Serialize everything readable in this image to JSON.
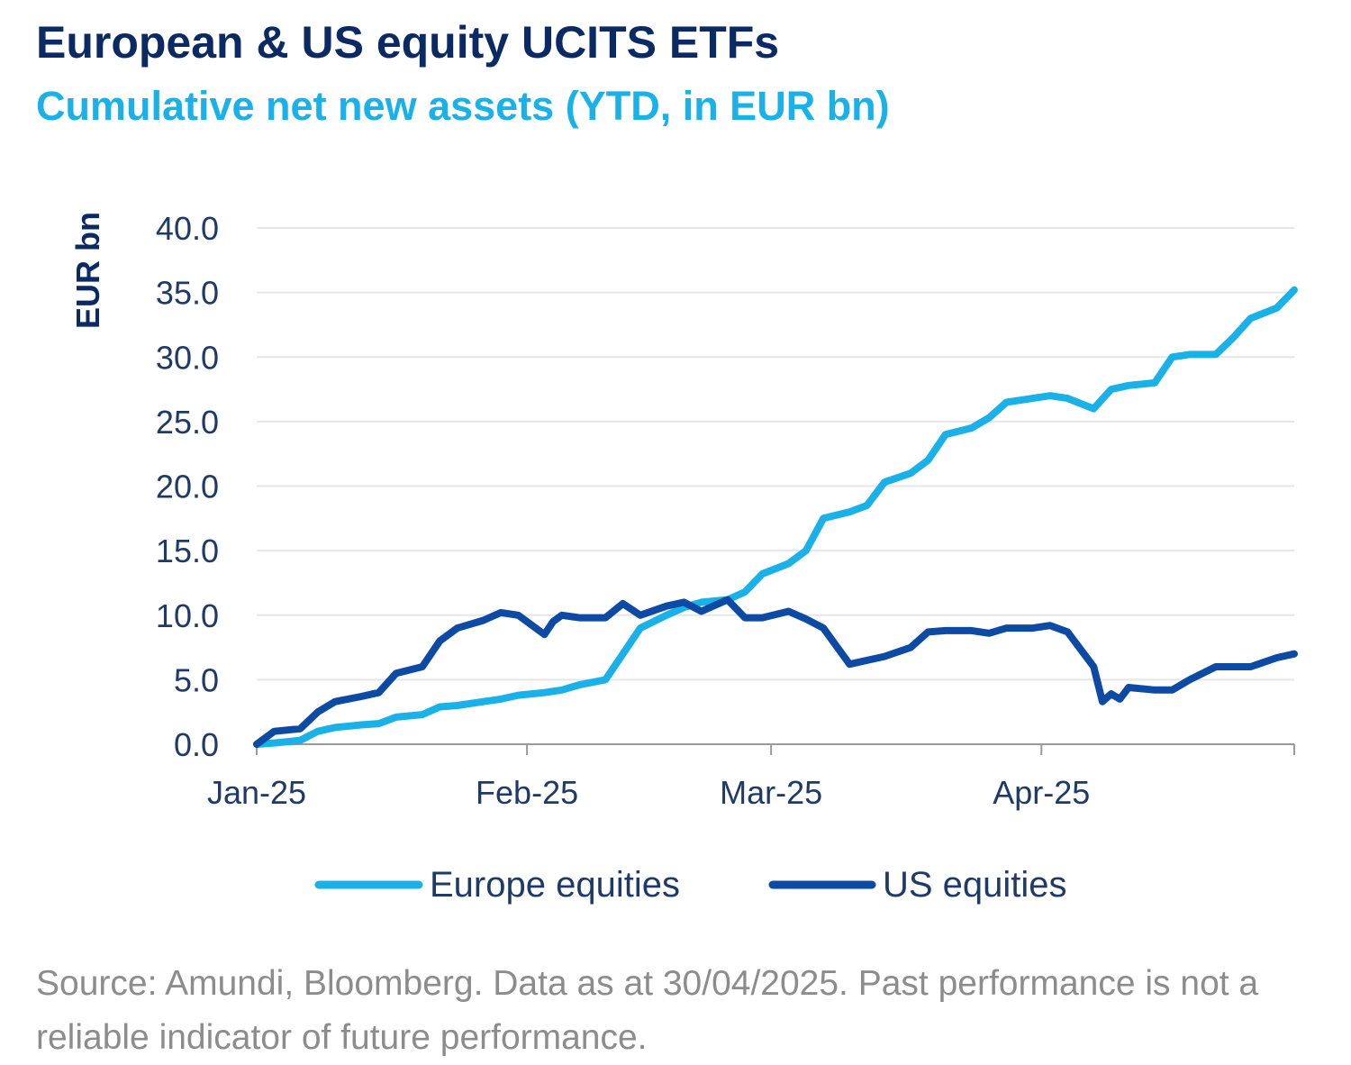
{
  "title": "European & US equity UCITS ETFs",
  "subtitle": "Cumulative net new assets (YTD, in EUR bn)",
  "source": "Source: Amundi, Bloomberg. Data as at 30/04/2025. Past performance is not a reliable indicator of future performance.",
  "colors": {
    "title": "#0b2a63",
    "subtitle": "#1ab0e8",
    "europe": "#1ab0e8",
    "us": "#0d4aa3",
    "grid": "#e6e6e6",
    "axis": "#9a9a9a"
  },
  "chart_data": {
    "type": "line",
    "title": "European & US equity UCITS ETFs",
    "subtitle": "Cumulative net new assets (YTD, in EUR bn)",
    "xlabel": "",
    "ylabel": "EUR bn",
    "ylim": [
      0,
      40
    ],
    "yticks": [
      "0.0",
      "5.0",
      "10.0",
      "15.0",
      "20.0",
      "25.0",
      "30.0",
      "35.0",
      "40.0"
    ],
    "xticks": [
      "Jan-25",
      "Feb-25",
      "Mar-25",
      "Apr-25"
    ],
    "xtick_dates": [
      "2025-01-01",
      "2025-02-01",
      "2025-03-01",
      "2025-04-01"
    ],
    "xlim": [
      "2025-01-01",
      "2025-04-30"
    ],
    "grid": true,
    "legend": "bottom",
    "series": [
      {
        "name": "Europe equities",
        "color": "#1ab0e8",
        "x": [
          "2025-01-01",
          "2025-01-03",
          "2025-01-06",
          "2025-01-08",
          "2025-01-10",
          "2025-01-13",
          "2025-01-15",
          "2025-01-17",
          "2025-01-20",
          "2025-01-22",
          "2025-01-24",
          "2025-01-27",
          "2025-01-29",
          "2025-01-31",
          "2025-02-03",
          "2025-02-05",
          "2025-02-07",
          "2025-02-10",
          "2025-02-12",
          "2025-02-14",
          "2025-02-17",
          "2025-02-19",
          "2025-02-21",
          "2025-02-24",
          "2025-02-26",
          "2025-02-28",
          "2025-03-03",
          "2025-03-05",
          "2025-03-07",
          "2025-03-10",
          "2025-03-12",
          "2025-03-14",
          "2025-03-17",
          "2025-03-19",
          "2025-03-21",
          "2025-03-24",
          "2025-03-26",
          "2025-03-28",
          "2025-03-31",
          "2025-04-02",
          "2025-04-04",
          "2025-04-07",
          "2025-04-09",
          "2025-04-11",
          "2025-04-14",
          "2025-04-16",
          "2025-04-18",
          "2025-04-21",
          "2025-04-23",
          "2025-04-25",
          "2025-04-28",
          "2025-04-30"
        ],
        "values": [
          0.0,
          0.1,
          0.3,
          1.0,
          1.3,
          1.5,
          1.6,
          2.1,
          2.3,
          2.9,
          3.0,
          3.3,
          3.5,
          3.8,
          4.0,
          4.2,
          4.6,
          5.0,
          7.0,
          9.0,
          10.0,
          10.6,
          11.0,
          11.2,
          11.8,
          13.2,
          14.0,
          15.0,
          17.5,
          18.0,
          18.5,
          20.3,
          21.0,
          22.0,
          24.0,
          24.5,
          25.3,
          26.5,
          26.8,
          27.0,
          26.8,
          26.0,
          27.5,
          27.8,
          28.0,
          30.0,
          30.2,
          30.2,
          31.5,
          33.0,
          33.8,
          35.2
        ]
      },
      {
        "name": "US equities",
        "color": "#0d4aa3",
        "x": [
          "2025-01-01",
          "2025-01-03",
          "2025-01-06",
          "2025-01-08",
          "2025-01-10",
          "2025-01-13",
          "2025-01-15",
          "2025-01-17",
          "2025-01-20",
          "2025-01-22",
          "2025-01-24",
          "2025-01-27",
          "2025-01-29",
          "2025-01-31",
          "2025-02-03",
          "2025-02-04",
          "2025-02-05",
          "2025-02-07",
          "2025-02-10",
          "2025-02-12",
          "2025-02-14",
          "2025-02-17",
          "2025-02-19",
          "2025-02-21",
          "2025-02-24",
          "2025-02-26",
          "2025-02-28",
          "2025-03-03",
          "2025-03-05",
          "2025-03-07",
          "2025-03-10",
          "2025-03-12",
          "2025-03-14",
          "2025-03-17",
          "2025-03-19",
          "2025-03-21",
          "2025-03-24",
          "2025-03-26",
          "2025-03-28",
          "2025-03-31",
          "2025-04-02",
          "2025-04-04",
          "2025-04-07",
          "2025-04-08",
          "2025-04-09",
          "2025-04-10",
          "2025-04-11",
          "2025-04-14",
          "2025-04-16",
          "2025-04-18",
          "2025-04-21",
          "2025-04-23",
          "2025-04-25",
          "2025-04-28",
          "2025-04-30"
        ],
        "values": [
          0.0,
          1.0,
          1.2,
          2.5,
          3.3,
          3.7,
          4.0,
          5.5,
          6.0,
          8.0,
          9.0,
          9.6,
          10.2,
          10.0,
          8.5,
          9.5,
          10.0,
          9.8,
          9.8,
          10.9,
          10.0,
          10.7,
          11.0,
          10.3,
          11.2,
          9.8,
          9.8,
          10.3,
          9.7,
          9.0,
          6.2,
          6.5,
          6.8,
          7.5,
          8.7,
          8.8,
          8.8,
          8.6,
          9.0,
          9.0,
          9.2,
          8.7,
          6.0,
          3.3,
          3.9,
          3.5,
          4.4,
          4.2,
          4.2,
          5.0,
          6.0,
          6.0,
          6.0,
          6.7,
          7.0
        ]
      }
    ]
  }
}
